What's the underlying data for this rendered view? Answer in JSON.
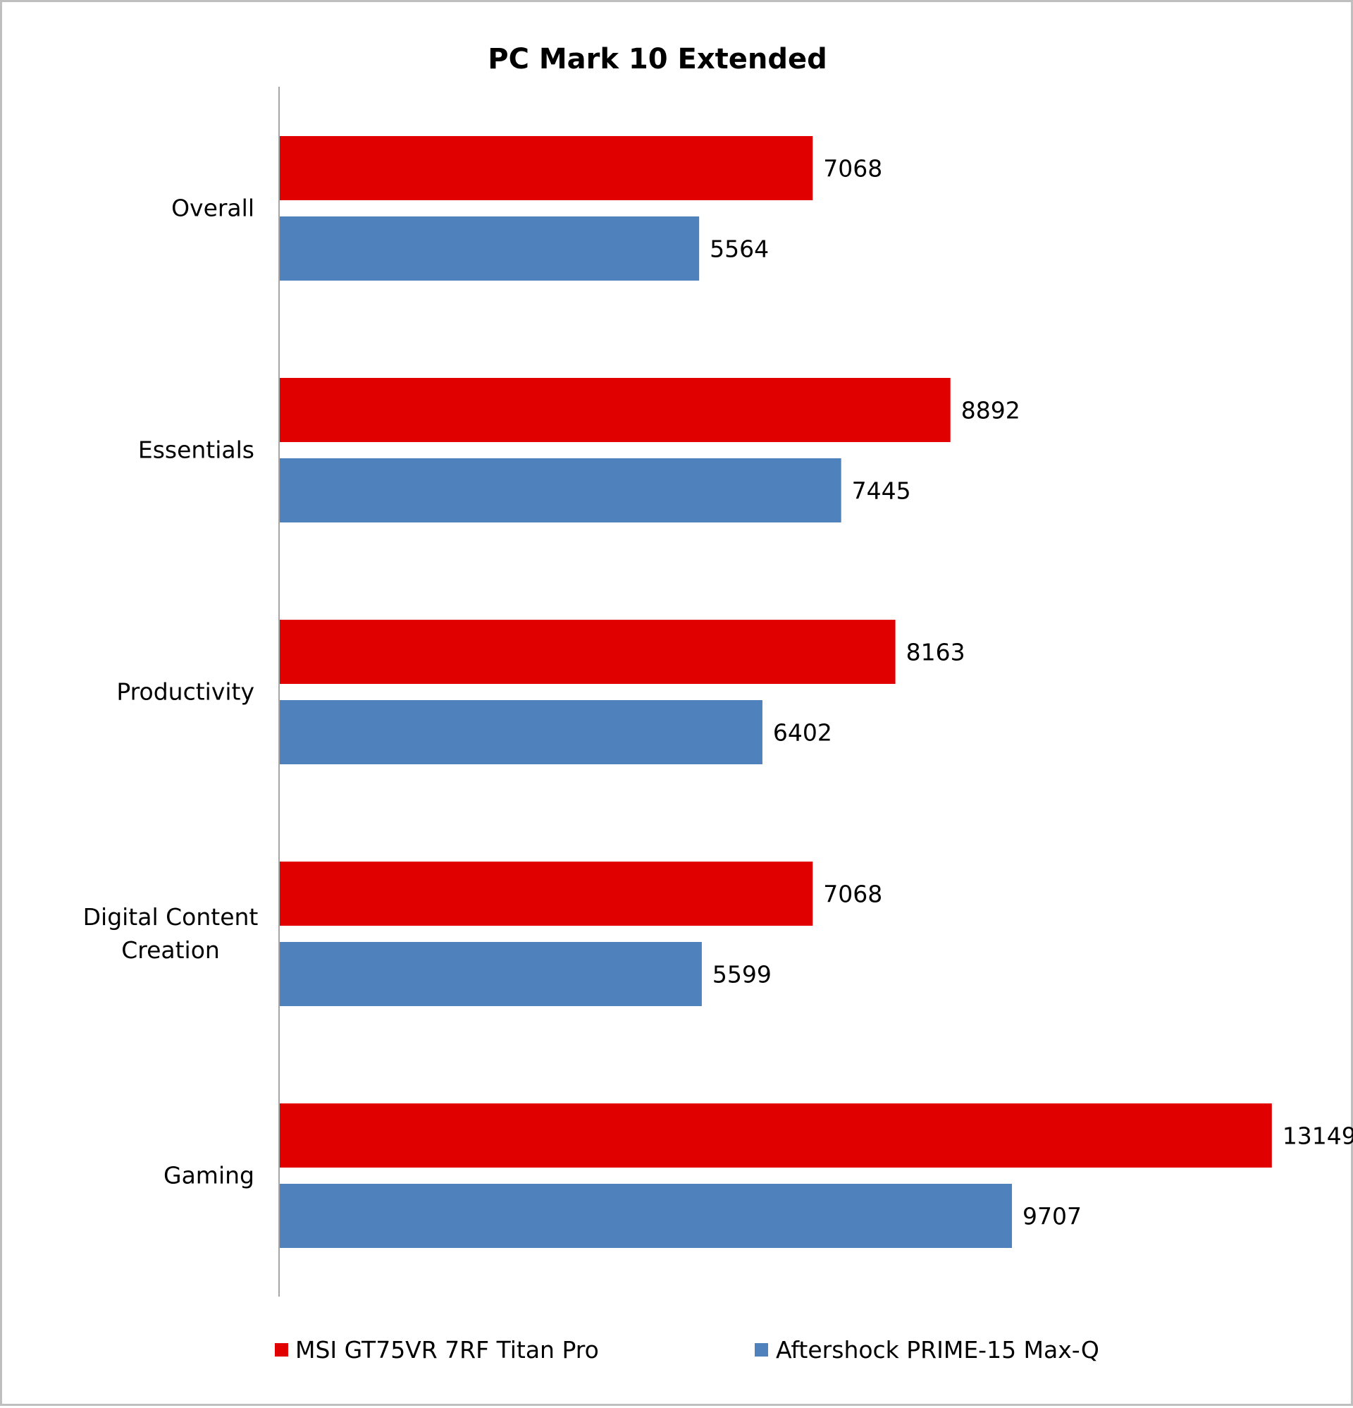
{
  "chart_data": {
    "type": "bar",
    "orientation": "horizontal",
    "title": "PC Mark 10 Extended",
    "xlabel": "",
    "ylabel": "",
    "categories": [
      "Overall",
      "Essentials",
      "Productivity",
      "Digital Content Creation",
      "Gaming"
    ],
    "category_lines": [
      [
        "Overall"
      ],
      [
        "Essentials"
      ],
      [
        "Productivity"
      ],
      [
        "Digital Content",
        "Creation"
      ],
      [
        "Gaming"
      ]
    ],
    "series": [
      {
        "name": "MSI GT75VR 7RF Titan Pro",
        "color": "#e00000",
        "values": [
          7068,
          8892,
          8163,
          7068,
          13149
        ]
      },
      {
        "name": "Aftershock PRIME-15 Max-Q",
        "color": "#4f81bd",
        "values": [
          5564,
          7445,
          6402,
          5599,
          9707
        ]
      }
    ],
    "xlim": [
      0,
      14000
    ],
    "grid": false,
    "data_labels": true,
    "legend_position": "bottom"
  }
}
